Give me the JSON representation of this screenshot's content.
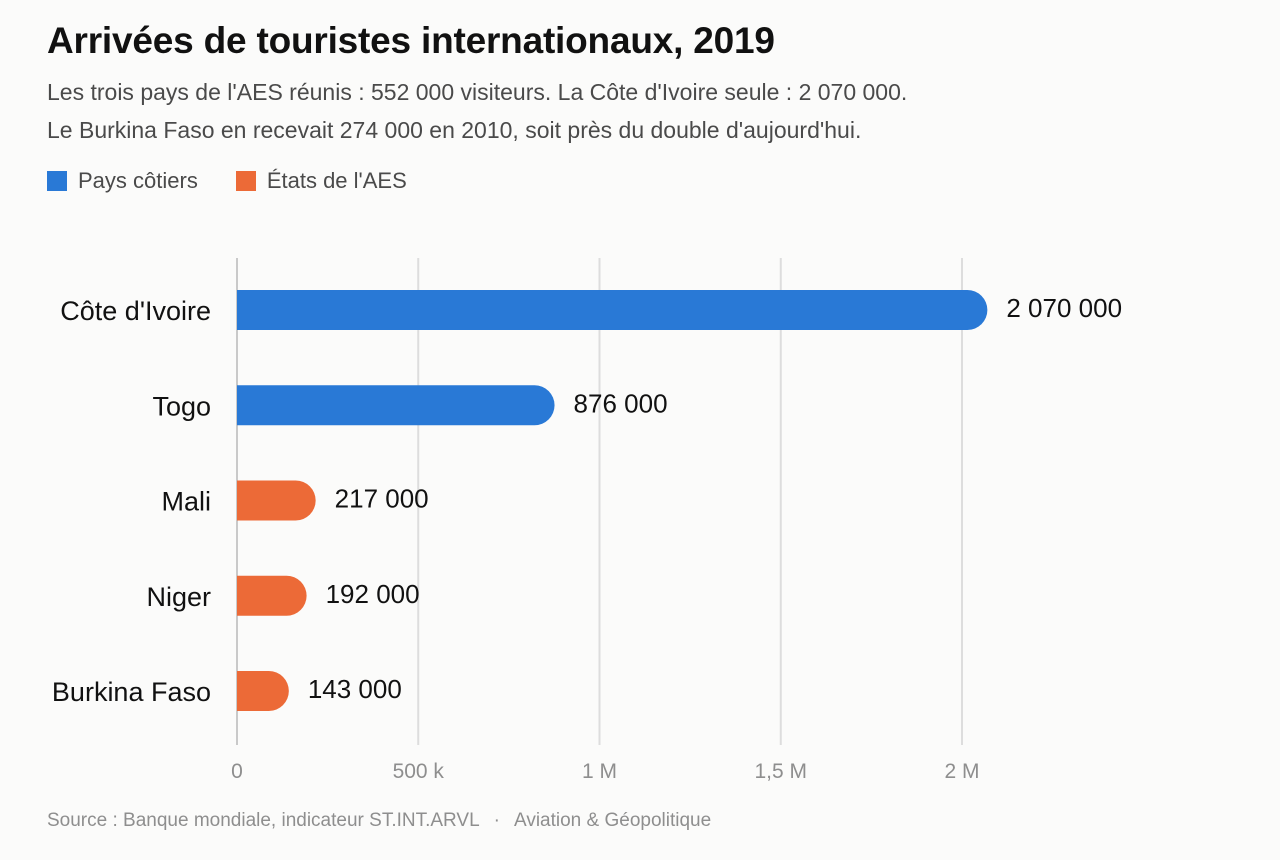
{
  "title": "Arrivées de touristes internationaux, 2019",
  "subtitle_lines": [
    "Les trois pays de l'AES réunis : 552 000 visiteurs. La Côte d'Ivoire seule : 2 070 000.",
    "Le Burkina Faso en recevait 274 000 en 2010, soit près du double d'aujourd'hui."
  ],
  "legend": [
    {
      "label": "Pays côtiers",
      "color": "#2979d6"
    },
    {
      "label": "États de l'AES",
      "color": "#ec6a37"
    }
  ],
  "source": {
    "text": "Source : Banque mondiale, indicateur ST.INT.ARVL",
    "separator": "·",
    "credit": "Aviation & Géopolitique"
  },
  "chart_data": {
    "type": "bar",
    "orientation": "horizontal",
    "categories": [
      "Côte d'Ivoire",
      "Togo",
      "Mali",
      "Niger",
      "Burkina Faso"
    ],
    "values": [
      2070000,
      876000,
      217000,
      192000,
      143000
    ],
    "value_labels": [
      "2 070 000",
      "876 000",
      "217 000",
      "192 000",
      "143 000"
    ],
    "groups": [
      "Pays côtiers",
      "Pays côtiers",
      "États de l'AES",
      "États de l'AES",
      "États de l'AES"
    ],
    "xlim": [
      0,
      2000000
    ],
    "xticks": [
      0,
      500000,
      1000000,
      1500000,
      2000000
    ],
    "xtick_labels": [
      "0",
      "500 k",
      "1 M",
      "1,5 M",
      "2 M"
    ],
    "grid": "vertical",
    "legend_position": "top-left"
  }
}
